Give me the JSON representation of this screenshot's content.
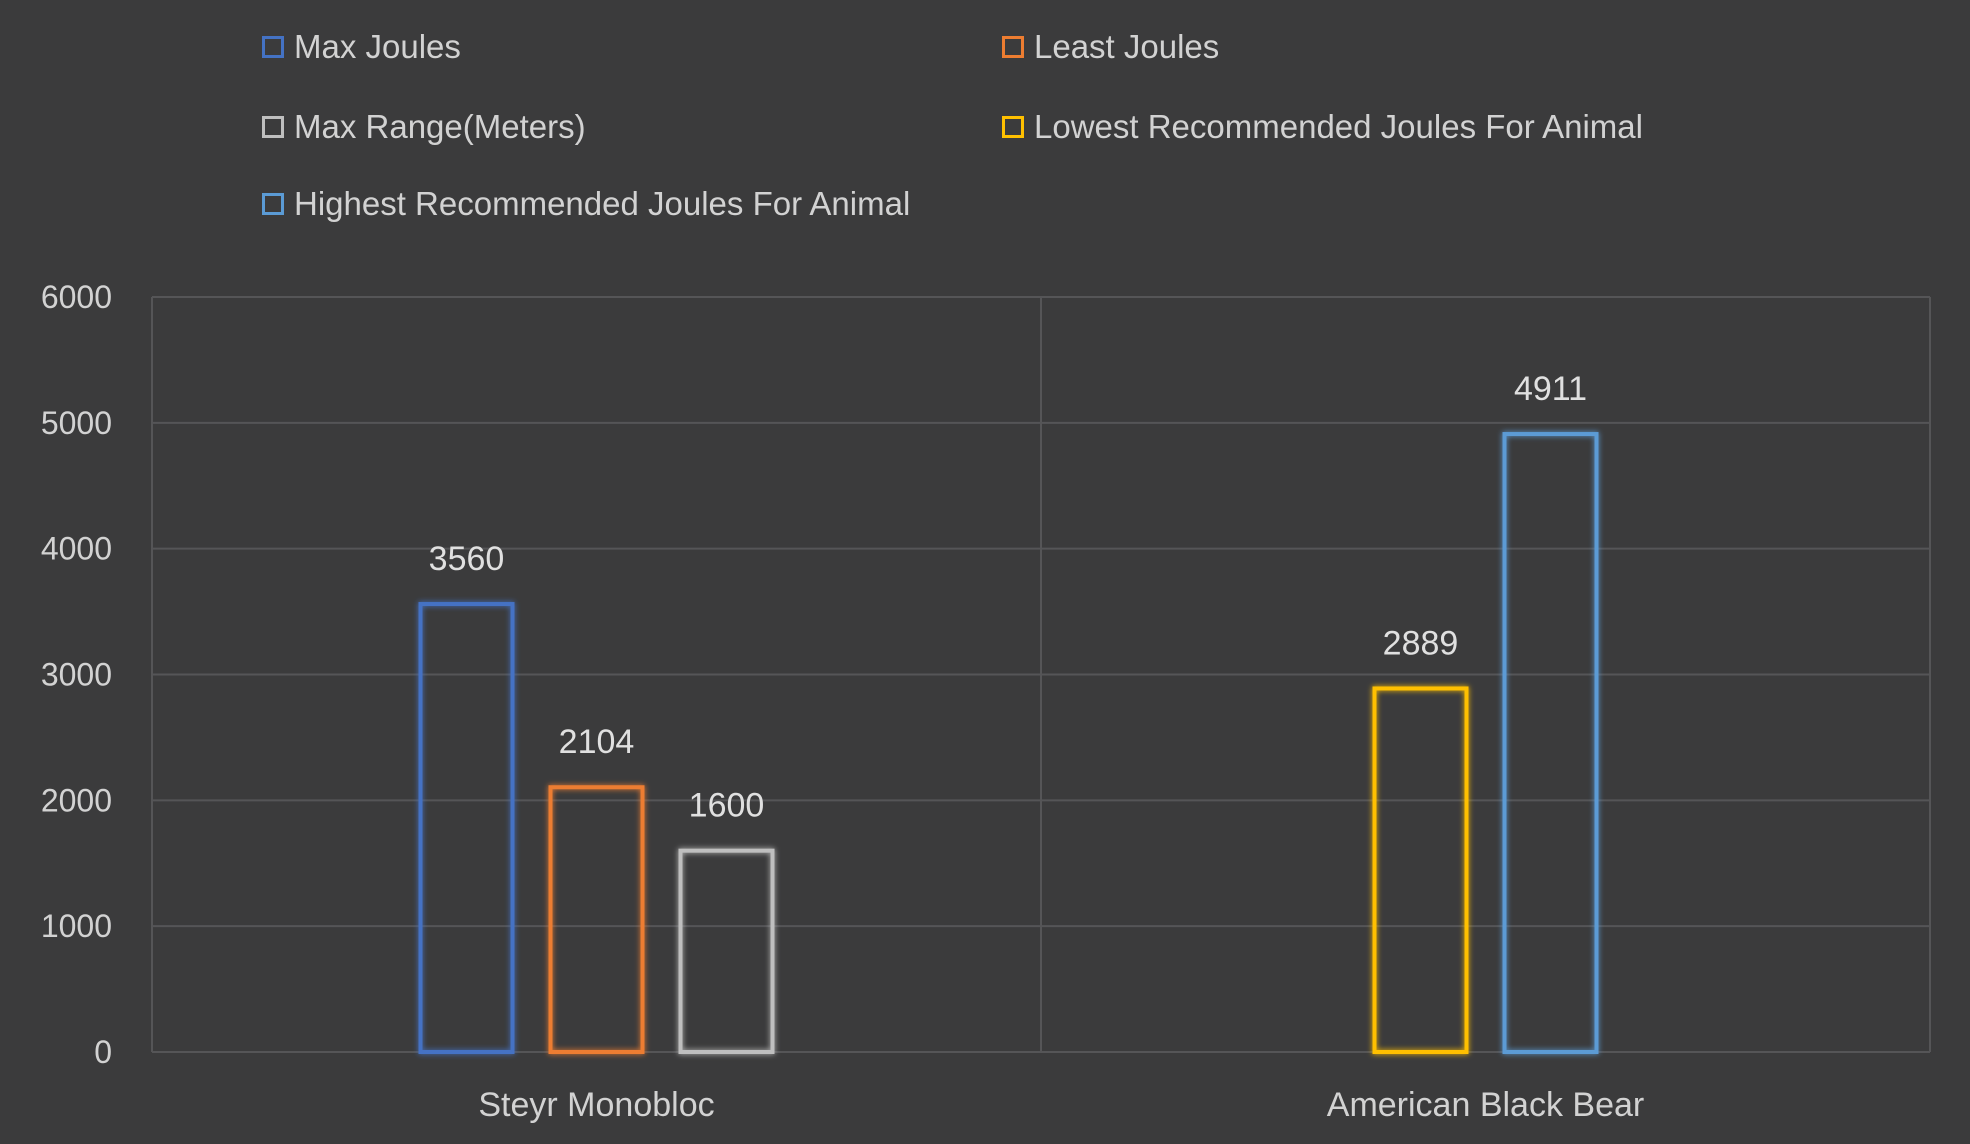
{
  "chart_data": {
    "type": "bar",
    "title": "",
    "xlabel": "",
    "ylabel": "",
    "ylim": [
      0,
      6000
    ],
    "yticks": [
      0,
      1000,
      2000,
      3000,
      4000,
      5000,
      6000
    ],
    "grid": true,
    "legend_position": "top",
    "categories": [
      "Steyr Monobloc",
      "American Black Bear"
    ],
    "series": [
      {
        "name": "Max Joules",
        "color": "#4472c4",
        "values": [
          3560,
          null
        ]
      },
      {
        "name": "Least Joules",
        "color": "#ed7d31",
        "values": [
          2104,
          null
        ]
      },
      {
        "name": "Max Range(Meters)",
        "color": "#bfbfbf",
        "values": [
          1600,
          null
        ]
      },
      {
        "name": "Lowest Recommended Joules For Animal",
        "color": "#ffc000",
        "values": [
          null,
          2889
        ]
      },
      {
        "name": "Highest Recommended Joules For Animal",
        "color": "#5b9bd5",
        "values": [
          null,
          4911
        ]
      }
    ]
  }
}
